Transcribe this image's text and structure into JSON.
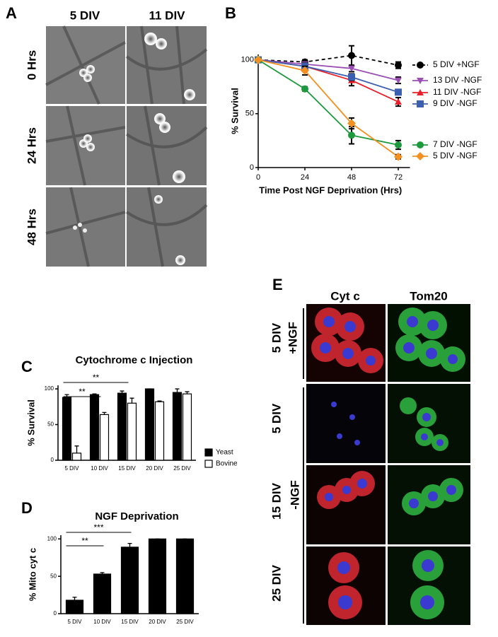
{
  "panels": {
    "A": {
      "label": "A",
      "columns": [
        "5 DIV",
        "11 DIV"
      ],
      "rows": [
        "0 Hrs",
        "24 Hrs",
        "48 Hrs"
      ]
    },
    "E": {
      "label": "E",
      "columns": [
        "Cyt c",
        "Tom20"
      ],
      "rows": [
        "5 DIV",
        "5 DIV",
        "15 DIV",
        "25 DIV"
      ],
      "groups": [
        "+NGF",
        "-NGF"
      ]
    }
  },
  "chart_data": [
    {
      "type": "line",
      "panel_label": "B",
      "ylabel": "% Survival",
      "xlabel": "Time Post NGF Deprivation (Hrs)",
      "x": [
        0,
        24,
        48,
        72
      ],
      "xlim": [
        0,
        78
      ],
      "xticks": [
        0,
        24,
        48,
        72
      ],
      "ylim": [
        0,
        105
      ],
      "yticks": [
        0,
        50,
        100
      ],
      "series": [
        {
          "name": "5 DIV +NGF",
          "color": "#000000",
          "marker": "circle",
          "dashed": true,
          "values": [
            100,
            98,
            104,
            95
          ],
          "errors": [
            0,
            2,
            9,
            3
          ]
        },
        {
          "name": "13 DIV -NGF",
          "color": "#9b4fb5",
          "marker": "triangle-down",
          "values": [
            100,
            96,
            92,
            81
          ],
          "errors": [
            0,
            2,
            3,
            3
          ]
        },
        {
          "name": "11 DIV -NGF",
          "color": "#e8202a",
          "marker": "triangle-up",
          "values": [
            100,
            94,
            81,
            61
          ],
          "errors": [
            0,
            3,
            5,
            4
          ]
        },
        {
          "name": "9 DIV -NGF",
          "color": "#3c5fb0",
          "marker": "square",
          "values": [
            100,
            94,
            84,
            70
          ],
          "errors": [
            0,
            2,
            3,
            2
          ]
        },
        {
          "name": "7 DIV -NGF",
          "color": "#1e9a3e",
          "marker": "circle",
          "values": [
            100,
            73,
            30,
            21
          ],
          "errors": [
            0,
            2,
            8,
            4
          ]
        },
        {
          "name": "5 DIV -NGF",
          "color": "#f39020",
          "marker": "diamond",
          "values": [
            100,
            90,
            41,
            10
          ],
          "errors": [
            0,
            4,
            5,
            2
          ]
        }
      ]
    },
    {
      "type": "bar",
      "panel_label": "C",
      "title": "Cytochrome c Injection",
      "ylabel": "% Survival",
      "categories": [
        "5 DIV",
        "10 DIV",
        "15 DIV",
        "20 DIV",
        "25 DIV"
      ],
      "ylim": [
        0,
        105
      ],
      "yticks": [
        0,
        50,
        100
      ],
      "series": [
        {
          "name": "Yeast",
          "color": "#000000",
          "values": [
            88,
            92,
            94,
            100,
            95
          ],
          "errors": [
            4,
            1,
            3,
            0,
            5
          ]
        },
        {
          "name": "Bovine",
          "color": "#ffffff",
          "values": [
            10,
            64,
            80,
            82,
            93
          ],
          "errors": [
            10,
            3,
            7,
            1,
            3
          ]
        }
      ],
      "annotations": [
        "**",
        "**"
      ]
    },
    {
      "type": "bar",
      "panel_label": "D",
      "title": "NGF Deprivation",
      "ylabel": "% Mito cyt c",
      "categories": [
        "5 DIV",
        "10 DIV",
        "15 DIV",
        "20 DIV",
        "25 DIV"
      ],
      "ylim": [
        0,
        105
      ],
      "yticks": [
        0,
        50,
        100
      ],
      "series": [
        {
          "color": "#000000",
          "values": [
            18,
            53,
            89,
            100,
            100
          ],
          "errors": [
            4,
            2,
            5,
            0,
            0
          ]
        }
      ],
      "annotations": [
        "**",
        "***"
      ]
    }
  ]
}
